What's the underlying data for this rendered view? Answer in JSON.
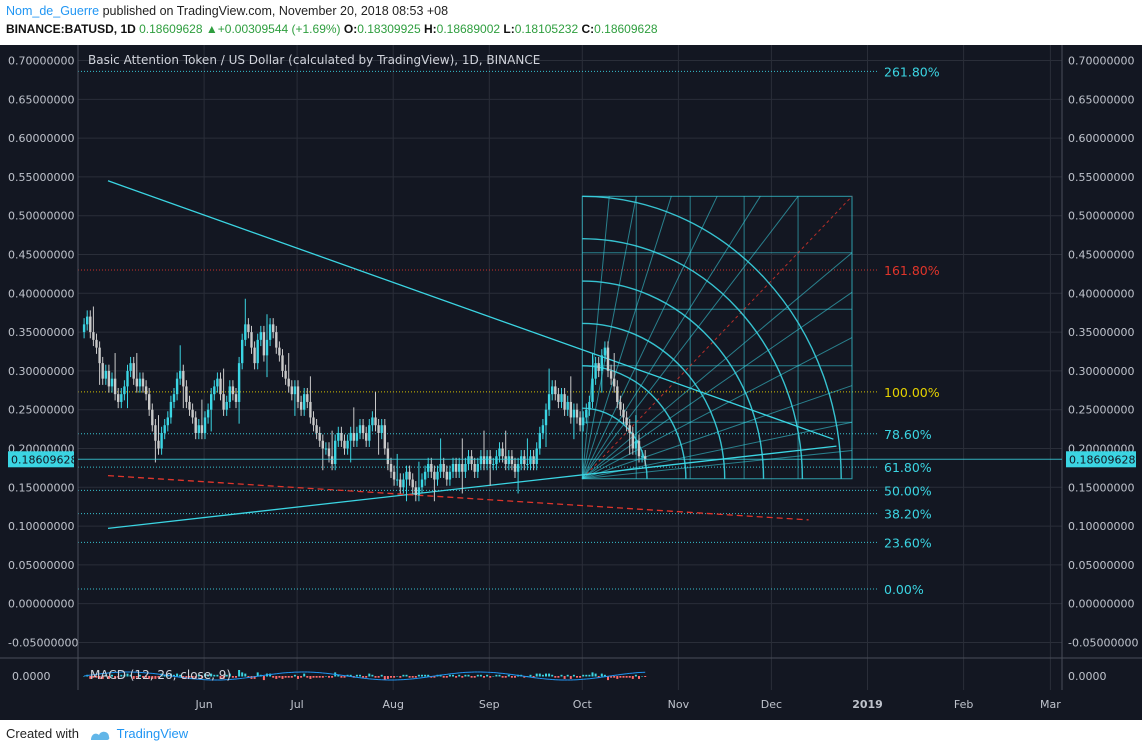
{
  "header": {
    "author": "Nom_de_Guerre",
    "published": "published on TradingView.com, November 20, 2018 08:53 +08",
    "symbol": "BINANCE:BATUSD, 1D",
    "last": "0.18609628",
    "change_arrow": "▲",
    "change": "+0.00309544 (+1.69%)",
    "o_label": "O:",
    "o": "0.18309925",
    "h_label": "H:",
    "h": "0.18689002",
    "l_label": "L:",
    "l": "0.18105232",
    "c_label": "C:",
    "c": "0.18609628"
  },
  "footer": {
    "created": "Created with",
    "brand": "TradingView"
  },
  "colors": {
    "bg": "#131722",
    "grid": "#2a2e39",
    "cyan": "#3bd5e3",
    "up": "#3bd5e3",
    "down": "#c9c9c9",
    "red": "#e0352b",
    "yellow": "#e5d200"
  },
  "chart_data": {
    "type": "candlestick",
    "title": "Basic Attention Token / US Dollar (calculated by TradingView), 1D, BINANCE",
    "ylim": [
      -0.07,
      0.72
    ],
    "y_ticks": [
      "0.70000000",
      "0.65000000",
      "0.60000000",
      "0.55000000",
      "0.50000000",
      "0.45000000",
      "0.40000000",
      "0.35000000",
      "0.30000000",
      "0.25000000",
      "0.20000000",
      "0.15000000",
      "0.10000000",
      "0.05000000",
      "0.00000000",
      "-0.05000000"
    ],
    "y_tick_values": [
      0.7,
      0.65,
      0.6,
      0.55,
      0.5,
      0.45,
      0.4,
      0.35,
      0.3,
      0.25,
      0.2,
      0.15,
      0.1,
      0.05,
      0.0,
      -0.05
    ],
    "x_ticks": [
      "Jun",
      "Jul",
      "Aug",
      "Sep",
      "Oct",
      "Nov",
      "Dec",
      "2019",
      "Feb",
      "Mar"
    ],
    "x_tick_days": [
      31,
      61,
      92,
      123,
      153,
      184,
      214,
      245,
      276,
      304
    ],
    "last_price": "0.18609628",
    "last_price_value": 0.18609628,
    "fib_levels": [
      {
        "label": "261.80%",
        "value": 0.686,
        "color": "#3bd5e3"
      },
      {
        "label": "161.80%",
        "value": 0.43,
        "color": "#e0352b"
      },
      {
        "label": "100.00%",
        "value": 0.273,
        "color": "#e5d200"
      },
      {
        "label": "78.60%",
        "value": 0.219,
        "color": "#3bd5e3"
      },
      {
        "label": "61.80%",
        "value": 0.176,
        "color": "#3bd5e3"
      },
      {
        "label": "50.00%",
        "value": 0.146,
        "color": "#3bd5e3"
      },
      {
        "label": "38.20%",
        "value": 0.116,
        "color": "#3bd5e3"
      },
      {
        "label": "23.60%",
        "value": 0.079,
        "color": "#3bd5e3"
      },
      {
        "label": "0.00%",
        "value": 0.019,
        "color": "#3bd5e3"
      }
    ],
    "trendlines": [
      {
        "name": "descending-resistance",
        "from": [
          0,
          0.545
        ],
        "to": [
          234,
          0.212
        ],
        "color": "#3bd5e3",
        "dash": false
      },
      {
        "name": "ascending-support",
        "from": [
          0,
          0.097
        ],
        "to": [
          235,
          0.203
        ],
        "color": "#3bd5e3",
        "dash": false
      },
      {
        "name": "red-dashed-support",
        "from": [
          0,
          0.165
        ],
        "to": [
          226,
          0.108
        ],
        "color": "#e0352b",
        "dash": true
      }
    ],
    "gann_box": {
      "day_start": 153,
      "day_end": 240,
      "low": 0.161,
      "high": 0.525
    },
    "candles_daily_close": [
      0.36,
      0.37,
      0.35,
      0.34,
      0.33,
      0.31,
      0.29,
      0.3,
      0.28,
      0.29,
      0.27,
      0.26,
      0.27,
      0.28,
      0.3,
      0.31,
      0.29,
      0.28,
      0.29,
      0.28,
      0.27,
      0.25,
      0.23,
      0.21,
      0.2,
      0.22,
      0.23,
      0.24,
      0.26,
      0.27,
      0.29,
      0.3,
      0.28,
      0.26,
      0.25,
      0.24,
      0.22,
      0.23,
      0.22,
      0.24,
      0.25,
      0.27,
      0.28,
      0.29,
      0.27,
      0.25,
      0.26,
      0.28,
      0.27,
      0.26,
      0.31,
      0.34,
      0.36,
      0.35,
      0.33,
      0.31,
      0.34,
      0.35,
      0.32,
      0.34,
      0.36,
      0.35,
      0.33,
      0.32,
      0.3,
      0.29,
      0.28,
      0.27,
      0.28,
      0.26,
      0.25,
      0.27,
      0.26,
      0.24,
      0.23,
      0.22,
      0.21,
      0.2,
      0.2,
      0.19,
      0.18,
      0.21,
      0.22,
      0.21,
      0.2,
      0.21,
      0.22,
      0.21,
      0.22,
      0.23,
      0.22,
      0.21,
      0.23,
      0.24,
      0.23,
      0.22,
      0.23,
      0.2,
      0.18,
      0.17,
      0.16,
      0.16,
      0.15,
      0.16,
      0.17,
      0.16,
      0.15,
      0.14,
      0.15,
      0.16,
      0.17,
      0.18,
      0.17,
      0.16,
      0.17,
      0.18,
      0.17,
      0.16,
      0.17,
      0.18,
      0.17,
      0.18,
      0.17,
      0.18,
      0.19,
      0.18,
      0.17,
      0.18,
      0.19,
      0.18,
      0.19,
      0.18,
      0.18,
      0.19,
      0.2,
      0.19,
      0.18,
      0.19,
      0.18,
      0.17,
      0.18,
      0.19,
      0.18,
      0.18,
      0.19,
      0.18,
      0.2,
      0.22,
      0.23,
      0.25,
      0.27,
      0.28,
      0.27,
      0.26,
      0.27,
      0.25,
      0.26,
      0.24,
      0.25,
      0.24,
      0.23,
      0.24,
      0.25,
      0.26,
      0.29,
      0.31,
      0.3,
      0.32,
      0.33,
      0.3,
      0.29,
      0.28,
      0.26,
      0.25,
      0.24,
      0.23,
      0.22,
      0.2,
      0.21,
      0.19,
      0.19,
      0.186
    ],
    "macd": {
      "label": "MACD (12, 26, close, 9)",
      "zero_tick": "0.0000"
    }
  }
}
